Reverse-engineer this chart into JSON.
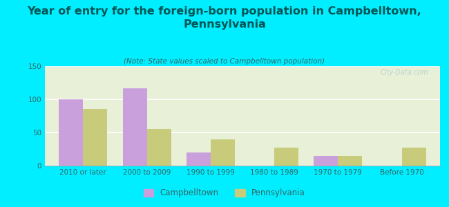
{
  "title": "Year of entry for the foreign-born population in Campbelltown,\nPennsylvania",
  "subtitle": "(Note: State values scaled to Campbelltown population)",
  "categories": [
    "2010 or later",
    "2000 to 2009",
    "1990 to 1999",
    "1980 to 1989",
    "1970 to 1979",
    "Before 1970"
  ],
  "campbelltown": [
    100,
    117,
    20,
    0,
    15,
    0
  ],
  "pennsylvania": [
    85,
    55,
    40,
    27,
    15,
    27
  ],
  "campbelltown_color": "#c9a0dc",
  "pennsylvania_color": "#c8cc7a",
  "background_color": "#00eeff",
  "plot_bg_color": "#e8f0d8",
  "ylim": [
    0,
    150
  ],
  "yticks": [
    0,
    50,
    100,
    150
  ],
  "bar_width": 0.38,
  "title_fontsize": 11.5,
  "subtitle_fontsize": 7.5,
  "tick_fontsize": 7.5,
  "legend_fontsize": 8.5,
  "watermark": "City-Data.com"
}
